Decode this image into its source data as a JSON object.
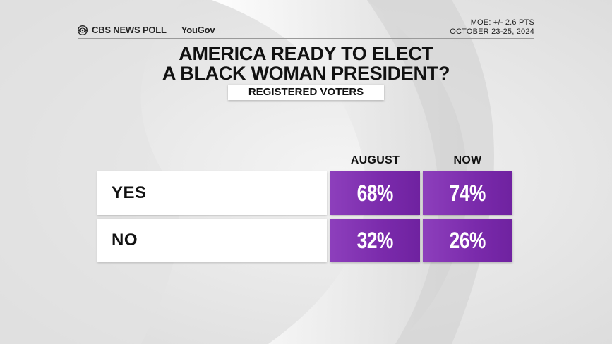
{
  "header": {
    "brand": "CBS NEWS POLL",
    "partner": "YouGov",
    "moe": "MOE: +/- 2.6 PTS",
    "dates": "OCTOBER 23-25, 2024"
  },
  "title": {
    "line1": "AMERICA READY TO ELECT",
    "line2": "A BLACK WOMAN PRESIDENT?"
  },
  "subtitle": "REGISTERED VOTERS",
  "chart_data": {
    "type": "table",
    "title": "AMERICA READY TO ELECT A BLACK WOMAN PRESIDENT?",
    "subtitle": "REGISTERED VOTERS",
    "columns": [
      "AUGUST",
      "NOW"
    ],
    "rows": [
      {
        "label": "YES",
        "values": [
          "68%",
          "74%"
        ]
      },
      {
        "label": "NO",
        "values": [
          "32%",
          "26%"
        ]
      }
    ],
    "series": [
      {
        "name": "AUGUST",
        "values": [
          68,
          32
        ]
      },
      {
        "name": "NOW",
        "values": [
          74,
          26
        ]
      }
    ],
    "categories": [
      "YES",
      "NO"
    ],
    "unit": "%"
  },
  "colors": {
    "accent": "#7a2aab",
    "background": "#e9e9e9",
    "text": "#111111"
  },
  "icons": {
    "logo": "cbs-eye-icon"
  }
}
